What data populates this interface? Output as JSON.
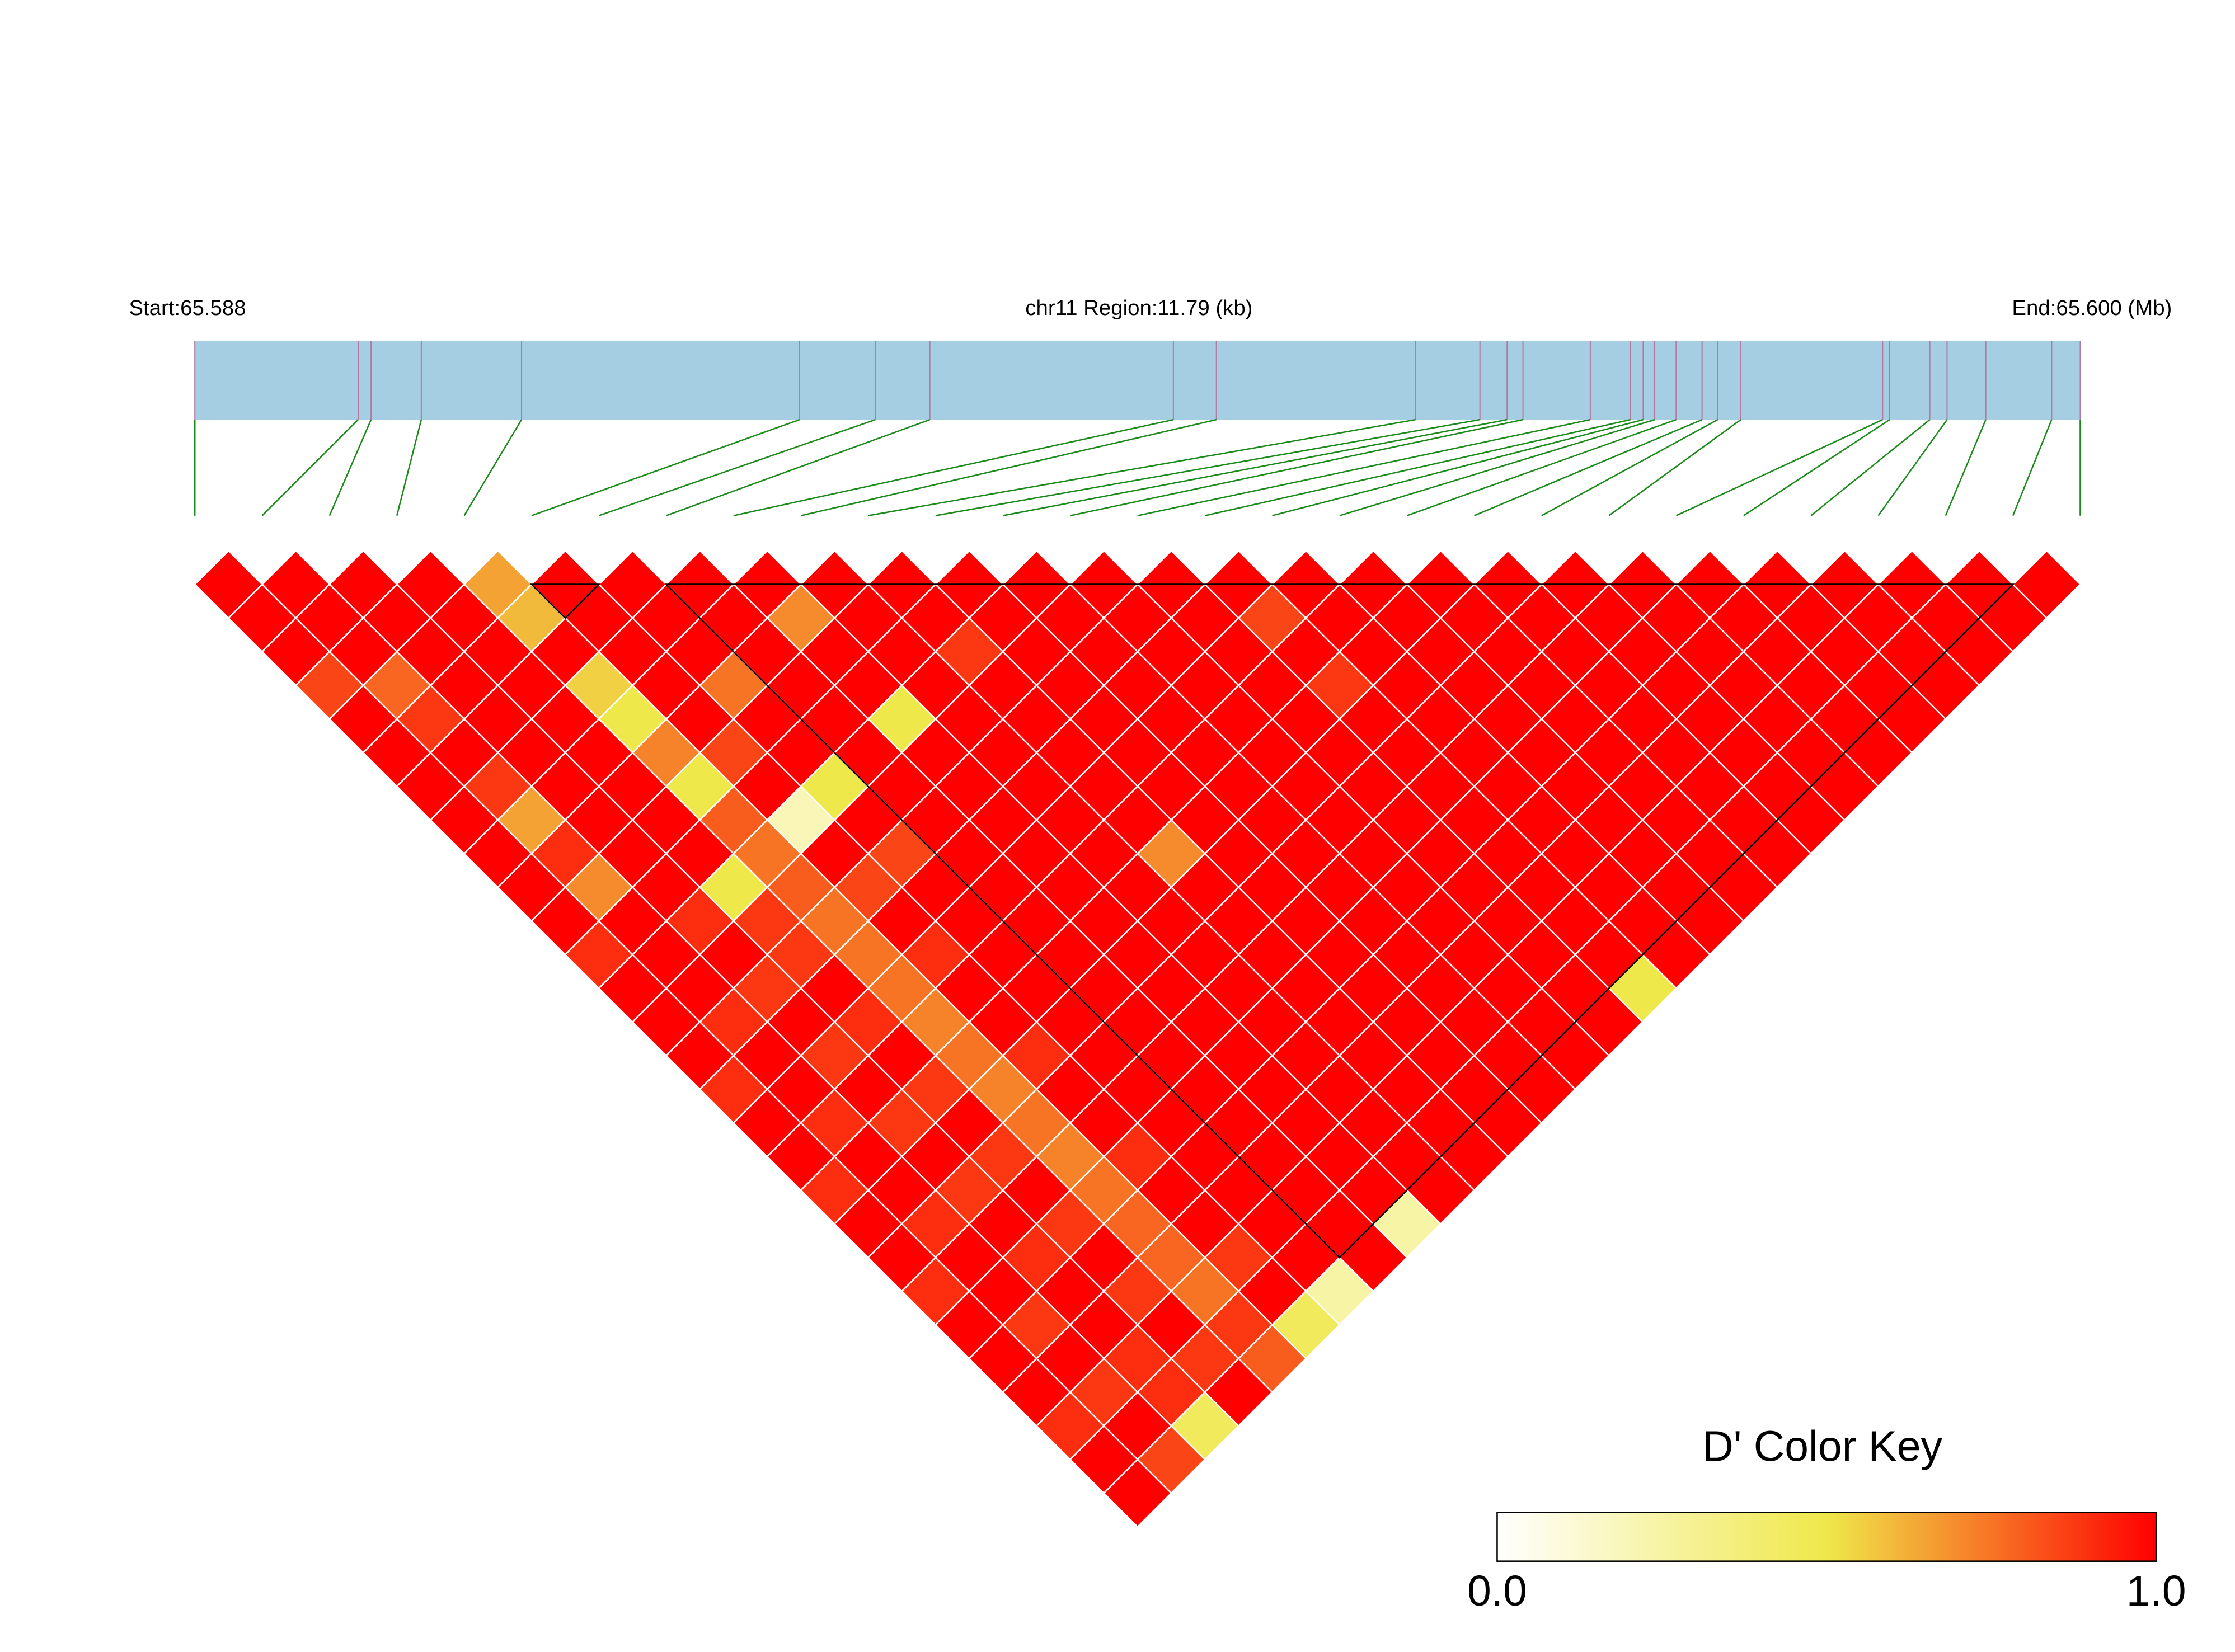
{
  "chart_data": {
    "type": "heatmap",
    "start_label": "Start:65.588",
    "region_label": "chr11 Region:11.79 (kb)",
    "end_label": "End:65.600 (Mb)",
    "xlim": [
      65.588,
      65.59979
    ],
    "snp_positions": [
      65.588,
      65.589021,
      65.589102,
      65.589416,
      65.590043,
      65.591781,
      65.592255,
      65.592596,
      65.594119,
      65.594388,
      65.595633,
      65.596036,
      65.596206,
      65.596305,
      65.596726,
      65.596977,
      65.597057,
      65.597129,
      65.597263,
      65.597425,
      65.597523,
      65.597667,
      65.598554,
      65.598598,
      65.598849,
      65.598957,
      65.599199,
      65.599611,
      65.59979
    ],
    "track_color": "#a6cee3",
    "connector_color": "#1a8a1a",
    "matrix": [
      [
        1,
        1,
        1,
        1,
        0.65,
        1,
        1,
        1,
        1,
        1,
        1,
        1,
        1,
        1,
        1,
        1,
        1,
        1,
        1,
        1,
        1,
        1,
        1,
        1,
        1,
        1,
        1,
        1
      ],
      [
        1,
        1,
        1,
        1,
        0.6,
        1,
        1,
        1,
        0.7,
        1,
        1,
        1,
        1,
        1,
        1,
        0.85,
        1,
        1,
        1,
        1,
        1,
        1,
        1,
        1,
        1,
        1,
        1
      ],
      [
        1,
        1,
        1,
        1,
        1,
        1,
        1,
        1,
        1,
        1,
        0.88,
        1,
        1,
        1,
        1,
        1,
        1,
        1,
        1,
        1,
        1,
        1,
        1,
        1,
        1,
        1
      ],
      [
        0.85,
        0.78,
        1,
        1,
        0.55,
        1,
        0.75,
        1,
        1,
        1,
        1,
        1,
        1,
        1,
        1,
        0.88,
        1,
        1,
        1,
        1,
        1,
        1,
        1,
        1,
        1
      ],
      [
        1,
        0.88,
        1,
        1,
        0.5,
        1,
        1,
        1,
        0.5,
        1,
        1,
        1,
        1,
        1,
        1,
        1,
        1,
        1,
        1,
        1,
        1,
        1,
        1,
        1
      ],
      [
        1,
        1,
        1,
        1,
        0.72,
        0.85,
        1,
        1,
        1,
        1,
        1,
        1,
        1,
        1,
        1,
        1,
        1,
        1,
        1,
        1,
        1,
        1,
        1
      ],
      [
        1,
        0.88,
        1,
        1,
        0.5,
        1,
        0.5,
        1,
        1,
        1,
        1,
        1,
        1,
        1,
        1,
        1,
        1,
        1,
        1,
        1,
        1,
        1
      ],
      [
        1,
        0.65,
        1,
        1,
        0.8,
        0.2,
        1,
        1,
        1,
        1,
        1,
        1,
        1,
        1,
        1,
        1,
        1,
        1,
        1,
        1,
        1
      ],
      [
        1,
        0.9,
        1,
        1,
        0.75,
        1,
        0.85,
        1,
        1,
        1,
        0.7,
        1,
        1,
        1,
        1,
        1,
        1,
        1,
        1,
        1
      ],
      [
        1,
        0.7,
        1,
        0.5,
        0.8,
        0.85,
        1,
        1,
        1,
        1,
        1,
        1,
        1,
        1,
        1,
        1,
        1,
        1,
        1
      ],
      [
        1,
        1,
        0.9,
        0.88,
        0.75,
        1,
        1,
        1,
        1,
        1,
        1,
        1,
        1,
        1,
        1,
        1,
        1,
        1
      ],
      [
        0.9,
        1,
        1,
        0.88,
        0.75,
        0.9,
        1,
        1,
        1,
        1,
        1,
        1,
        1,
        1,
        1,
        1,
        1
      ],
      [
        1,
        1,
        0.88,
        1,
        0.75,
        1,
        1,
        1,
        1,
        1,
        1,
        1,
        1,
        1,
        1,
        0.5
      ],
      [
        1,
        0.9,
        1,
        0.9,
        0.72,
        1,
        1,
        1,
        1,
        1,
        1,
        1,
        1,
        1,
        1
      ],
      [
        1,
        1,
        0.88,
        1,
        0.75,
        0.9,
        1,
        1,
        1,
        1,
        1,
        1,
        1,
        1
      ],
      [
        0.9,
        1,
        1,
        0.88,
        0.72,
        1,
        1,
        1,
        1,
        1,
        1,
        1,
        1
      ],
      [
        1,
        0.9,
        0.88,
        1,
        0.75,
        1,
        1,
        1,
        1,
        1,
        1,
        1
      ],
      [
        1,
        1,
        1,
        0.88,
        0.72,
        0.9,
        1,
        1,
        1,
        1,
        1
      ],
      [
        0.9,
        1,
        0.88,
        1,
        0.75,
        1,
        1,
        1,
        1,
        1
      ],
      [
        1,
        0.9,
        1,
        0.88,
        0.78,
        1,
        1,
        1,
        0.25
      ],
      [
        1,
        1,
        0.9,
        1,
        0.78,
        0.88,
        1,
        1
      ],
      [
        0.9,
        1,
        1,
        0.88,
        0.75,
        1,
        0.25
      ],
      [
        1,
        0.88,
        1,
        1,
        0.88,
        0.45
      ],
      [
        1,
        1,
        0.9,
        0.88,
        0.8
      ],
      [
        1,
        0.88,
        0.9,
        1
      ],
      [
        0.9,
        1,
        0.45
      ],
      [
        1,
        0.85
      ],
      [
        1
      ]
    ],
    "blocks": [
      [
        5,
        6
      ],
      [
        7,
        27
      ]
    ],
    "colorbar": {
      "title": "D' Color Key",
      "lim": [
        0,
        1
      ],
      "ticks": [
        {
          "value": 0,
          "label": "0.0"
        },
        {
          "value": 1,
          "label": "1.0"
        }
      ],
      "colors": [
        "#ffffff",
        "#efe84a",
        "#ff0000"
      ]
    }
  }
}
